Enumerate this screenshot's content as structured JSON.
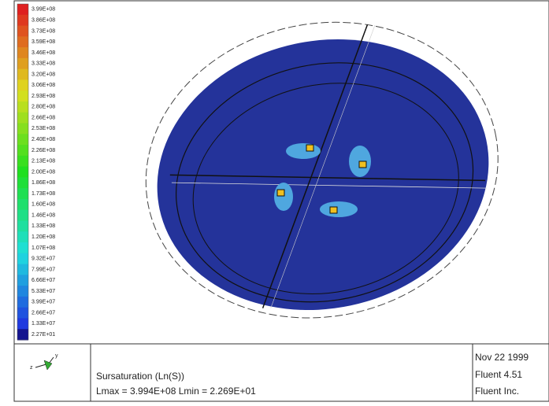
{
  "colorbar": {
    "labels": [
      "3.99E+08",
      "3.86E+08",
      "3.73E+08",
      "3.59E+08",
      "3.46E+08",
      "3.33E+08",
      "3.20E+08",
      "3.06E+08",
      "2.93E+08",
      "2.80E+08",
      "2.66E+08",
      "2.53E+08",
      "2.40E+08",
      "2.26E+08",
      "2.13E+08",
      "2.00E+08",
      "1.86E+08",
      "1.73E+08",
      "1.60E+08",
      "1.46E+08",
      "1.33E+08",
      "1.20E+08",
      "1.07E+08",
      "9.32E+07",
      "7.99E+07",
      "6.66E+07",
      "5.33E+07",
      "3.99E+07",
      "2.66E+07",
      "1.33E+07",
      "2.27E+01"
    ]
  },
  "axes_icon": {
    "z": "z",
    "y": "y"
  },
  "footer": {
    "title": "Sursaturation (Ln(S))",
    "range": "Lmax = 3.994E+08   Lmin = 2.269E+01",
    "date": "Nov 22 1999",
    "software": "Fluent 4.51",
    "company": "Fluent Inc."
  }
}
